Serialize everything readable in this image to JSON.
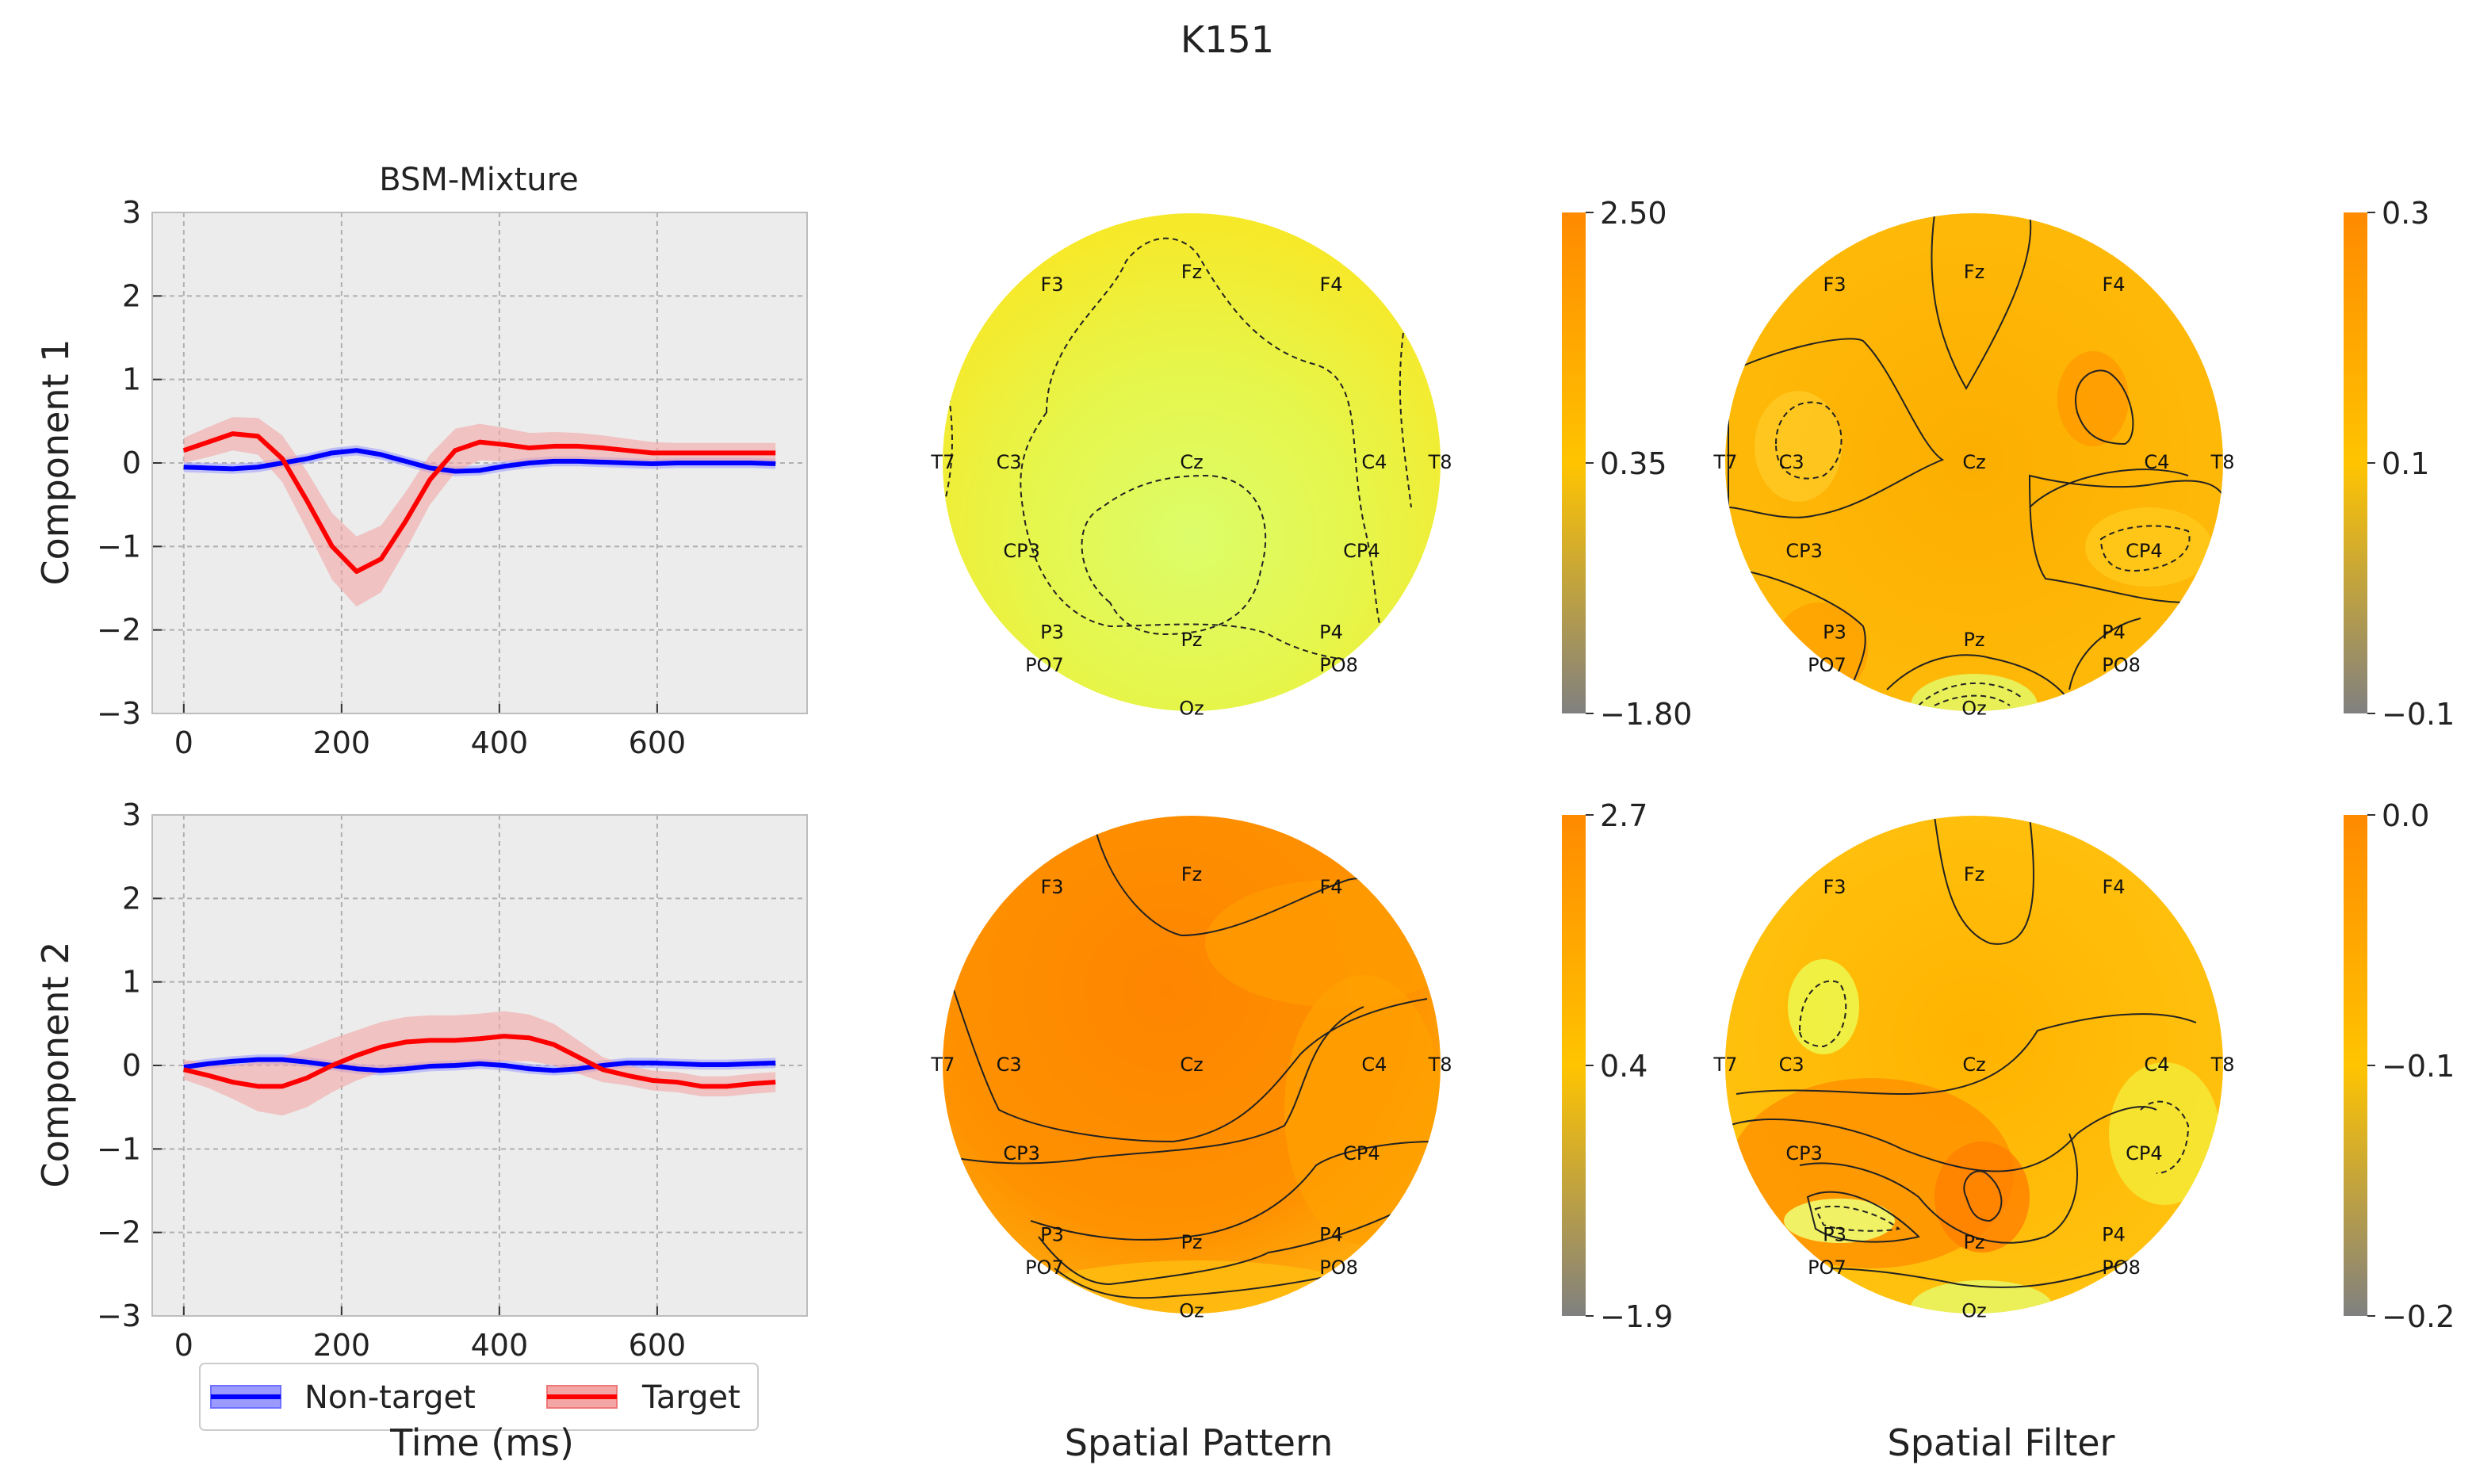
{
  "figure_title": "K151",
  "column_titles": {
    "bsm": "BSM-Mixture"
  },
  "row_labels": [
    "Component 1",
    "Component 2"
  ],
  "xlabels": {
    "time": "Time (ms)",
    "pattern": "Spatial Pattern",
    "filter": "Spatial Filter"
  },
  "legend": {
    "nontarget": "Non-target",
    "target": "Target"
  },
  "colors": {
    "nontarget": "#0000ff",
    "target": "#ff0000",
    "target_band": "#f4a6a6",
    "nontarget_band": "#9a9aff",
    "plot_bg": "#ececec"
  },
  "electrodes": [
    "Fz",
    "F3",
    "F4",
    "T7",
    "C3",
    "Cz",
    "C4",
    "T8",
    "CP3",
    "CP4",
    "P3",
    "Pz",
    "P4",
    "PO7",
    "PO8",
    "Oz"
  ],
  "chart_data": [
    {
      "type": "line",
      "panel": "component-1",
      "ylabel": "Component 1",
      "xlim": [
        -40,
        790
      ],
      "ylim": [
        -3,
        3
      ],
      "xticks": [
        0,
        200,
        400,
        600
      ],
      "yticks": [
        -3,
        -2,
        -1,
        0,
        1,
        2,
        3
      ],
      "grid": true,
      "x": [
        0,
        31,
        62,
        94,
        125,
        156,
        188,
        219,
        250,
        281,
        312,
        344,
        375,
        406,
        438,
        469,
        500,
        531,
        562,
        594,
        625,
        656,
        688,
        719,
        750
      ],
      "series": [
        {
          "name": "Non-target",
          "values": [
            -0.05,
            -0.06,
            -0.07,
            -0.05,
            0.0,
            0.05,
            0.12,
            0.15,
            0.1,
            0.02,
            -0.06,
            -0.1,
            -0.09,
            -0.04,
            0.0,
            0.02,
            0.02,
            0.01,
            0.0,
            -0.01,
            0.0,
            0.0,
            0.0,
            0.0,
            -0.01
          ],
          "band": [
            0.06,
            0.06,
            0.06,
            0.06,
            0.06,
            0.06,
            0.06,
            0.06,
            0.06,
            0.06,
            0.06,
            0.06,
            0.06,
            0.06,
            0.06,
            0.06,
            0.06,
            0.06,
            0.06,
            0.06,
            0.06,
            0.06,
            0.06,
            0.06,
            0.06
          ]
        },
        {
          "name": "Target",
          "values": [
            0.15,
            0.25,
            0.35,
            0.32,
            0.05,
            -0.45,
            -1.0,
            -1.3,
            -1.15,
            -0.7,
            -0.2,
            0.15,
            0.25,
            0.22,
            0.18,
            0.2,
            0.2,
            0.18,
            0.15,
            0.12,
            0.12,
            0.12,
            0.12,
            0.12,
            0.12
          ],
          "band": [
            0.15,
            0.18,
            0.2,
            0.22,
            0.28,
            0.35,
            0.4,
            0.42,
            0.4,
            0.35,
            0.3,
            0.26,
            0.22,
            0.2,
            0.18,
            0.17,
            0.16,
            0.15,
            0.14,
            0.13,
            0.12,
            0.12,
            0.12,
            0.12,
            0.12
          ]
        }
      ]
    },
    {
      "type": "line",
      "panel": "component-2",
      "ylabel": "Component 2",
      "xlim": [
        -40,
        790
      ],
      "ylim": [
        -3,
        3
      ],
      "xticks": [
        0,
        200,
        400,
        600
      ],
      "yticks": [
        -3,
        -2,
        -1,
        0,
        1,
        2,
        3
      ],
      "grid": true,
      "x": [
        0,
        31,
        62,
        94,
        125,
        156,
        188,
        219,
        250,
        281,
        312,
        344,
        375,
        406,
        438,
        469,
        500,
        531,
        562,
        594,
        625,
        656,
        688,
        719,
        750
      ],
      "series": [
        {
          "name": "Non-target",
          "values": [
            -0.02,
            0.02,
            0.05,
            0.07,
            0.07,
            0.04,
            0.0,
            -0.04,
            -0.06,
            -0.04,
            -0.01,
            0.0,
            0.02,
            0.0,
            -0.04,
            -0.06,
            -0.04,
            0.0,
            0.03,
            0.03,
            0.02,
            0.01,
            0.01,
            0.02,
            0.03
          ],
          "band": [
            0.06,
            0.06,
            0.06,
            0.06,
            0.06,
            0.06,
            0.06,
            0.06,
            0.06,
            0.06,
            0.06,
            0.06,
            0.06,
            0.06,
            0.06,
            0.06,
            0.06,
            0.06,
            0.06,
            0.06,
            0.06,
            0.06,
            0.06,
            0.06,
            0.06
          ]
        },
        {
          "name": "Target",
          "values": [
            -0.05,
            -0.12,
            -0.2,
            -0.25,
            -0.25,
            -0.15,
            0.0,
            0.12,
            0.22,
            0.28,
            0.3,
            0.3,
            0.32,
            0.35,
            0.33,
            0.25,
            0.1,
            -0.05,
            -0.12,
            -0.18,
            -0.2,
            -0.25,
            -0.25,
            -0.22,
            -0.2
          ],
          "band": [
            0.12,
            0.15,
            0.2,
            0.3,
            0.35,
            0.35,
            0.32,
            0.3,
            0.3,
            0.3,
            0.3,
            0.3,
            0.3,
            0.3,
            0.28,
            0.25,
            0.2,
            0.15,
            0.12,
            0.12,
            0.12,
            0.12,
            0.12,
            0.12,
            0.12
          ]
        }
      ]
    },
    {
      "type": "heatmap",
      "panel": "pattern-1",
      "colorbar_ticks": [
        "2.50",
        "0.35",
        "−1.80"
      ]
    },
    {
      "type": "heatmap",
      "panel": "filter-1",
      "colorbar_ticks": [
        "0.3",
        "0.1",
        "−0.1"
      ]
    },
    {
      "type": "heatmap",
      "panel": "pattern-2",
      "colorbar_ticks": [
        "2.7",
        "0.4",
        "−1.9"
      ]
    },
    {
      "type": "heatmap",
      "panel": "filter-2",
      "colorbar_ticks": [
        "0.0",
        "−0.1",
        "−0.2"
      ]
    }
  ]
}
